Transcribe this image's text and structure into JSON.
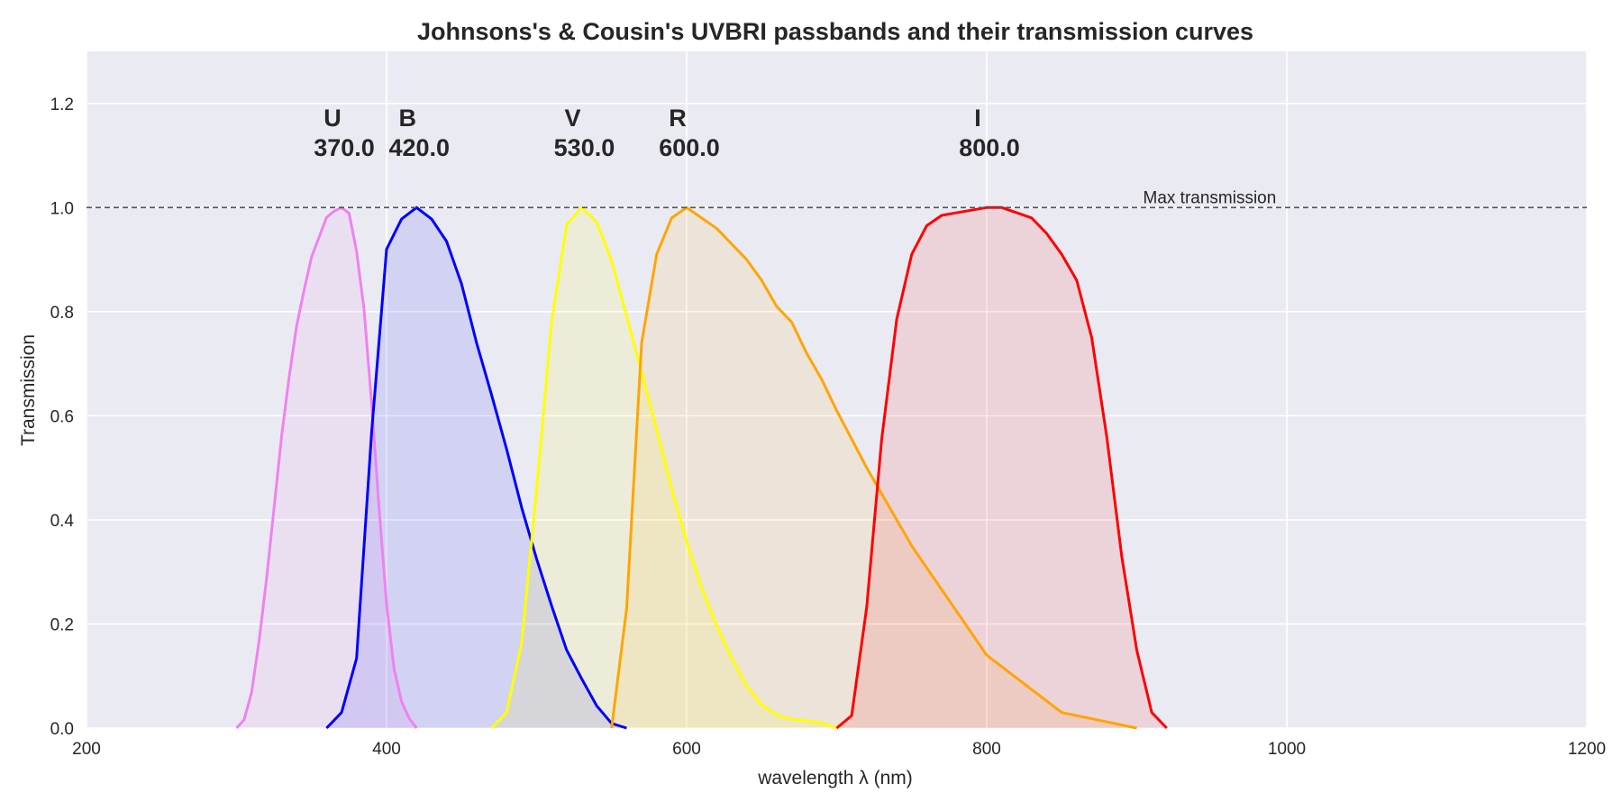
{
  "chart_data": {
    "type": "area",
    "title": "Johnsons's & Cousin's UVBRI passbands and their transmission curves",
    "xlabel": "wavelength λ (nm)",
    "ylabel": "Transmission",
    "xlim": [
      200,
      1200
    ],
    "ylim": [
      0,
      1.3
    ],
    "xticks": [
      200,
      400,
      600,
      800,
      1000,
      1200
    ],
    "xtick_labels": [
      "200",
      "400",
      "600",
      "800",
      "1000",
      "1200"
    ],
    "yticks": [
      0.0,
      0.2,
      0.4,
      0.6,
      0.8,
      1.0,
      1.2
    ],
    "ytick_labels": [
      "0.0",
      "0.2",
      "0.4",
      "0.6",
      "0.8",
      "1.0",
      "1.2"
    ],
    "grid": true,
    "background": "#eaeaf2",
    "reference_line": {
      "y": 1.0,
      "label": "Max transmission",
      "color": "#555555",
      "style": "dashed"
    },
    "series": [
      {
        "name": "U",
        "center_label": "370.0",
        "center": 370,
        "color": "#ee82ee",
        "x": [
          300,
          305,
          310,
          315,
          320,
          325,
          330,
          335,
          340,
          345,
          350,
          355,
          360,
          365,
          370,
          375,
          380,
          385,
          390,
          395,
          400,
          405,
          410,
          415,
          420
        ],
        "y": [
          0.0,
          0.016,
          0.068,
          0.167,
          0.287,
          0.423,
          0.56,
          0.673,
          0.772,
          0.841,
          0.905,
          0.943,
          0.981,
          0.993,
          1.0,
          0.989,
          0.916,
          0.804,
          0.625,
          0.423,
          0.238,
          0.114,
          0.051,
          0.019,
          0.0
        ]
      },
      {
        "name": "B",
        "center_label": "420.0",
        "center": 420,
        "color": "#0000ff",
        "x": [
          360,
          370,
          380,
          390,
          400,
          410,
          420,
          430,
          440,
          450,
          460,
          470,
          480,
          490,
          500,
          510,
          520,
          530,
          540,
          550,
          560
        ],
        "y": [
          0.0,
          0.03,
          0.134,
          0.567,
          0.92,
          0.978,
          1.0,
          0.978,
          0.935,
          0.853,
          0.74,
          0.64,
          0.536,
          0.424,
          0.325,
          0.235,
          0.15,
          0.095,
          0.043,
          0.009,
          0.0
        ]
      },
      {
        "name": "V",
        "center_label": "530.0",
        "center": 530,
        "color": "#ffff00",
        "x": [
          470,
          480,
          490,
          500,
          510,
          520,
          530,
          540,
          550,
          560,
          570,
          580,
          590,
          600,
          610,
          620,
          630,
          640,
          650,
          660,
          670,
          680,
          690,
          700
        ],
        "y": [
          0.0,
          0.03,
          0.163,
          0.458,
          0.78,
          0.967,
          1.0,
          0.973,
          0.898,
          0.792,
          0.684,
          0.574,
          0.461,
          0.359,
          0.27,
          0.197,
          0.135,
          0.081,
          0.045,
          0.025,
          0.017,
          0.014,
          0.01,
          0.0
        ]
      },
      {
        "name": "R",
        "center_label": "600.0",
        "center": 600,
        "color": "#ffa500",
        "x": [
          550,
          560,
          570,
          580,
          590,
          600,
          610,
          620,
          630,
          640,
          650,
          660,
          670,
          680,
          690,
          700,
          720,
          740,
          750,
          800,
          850,
          900
        ],
        "y": [
          0.0,
          0.23,
          0.74,
          0.91,
          0.98,
          1.0,
          0.98,
          0.96,
          0.93,
          0.9,
          0.86,
          0.81,
          0.78,
          0.72,
          0.67,
          0.61,
          0.5,
          0.4,
          0.35,
          0.14,
          0.03,
          0.0
        ]
      },
      {
        "name": "I",
        "center_label": "800.0",
        "center": 800,
        "color": "#ff0000",
        "x": [
          700,
          710,
          720,
          730,
          740,
          750,
          760,
          770,
          780,
          790,
          800,
          810,
          820,
          830,
          840,
          850,
          860,
          870,
          880,
          890,
          900,
          910,
          920
        ],
        "y": [
          0.0,
          0.024,
          0.232,
          0.555,
          0.785,
          0.91,
          0.965,
          0.985,
          0.99,
          0.995,
          1.0,
          1.0,
          0.99,
          0.98,
          0.95,
          0.91,
          0.86,
          0.75,
          0.56,
          0.33,
          0.15,
          0.03,
          0.0
        ]
      }
    ]
  }
}
